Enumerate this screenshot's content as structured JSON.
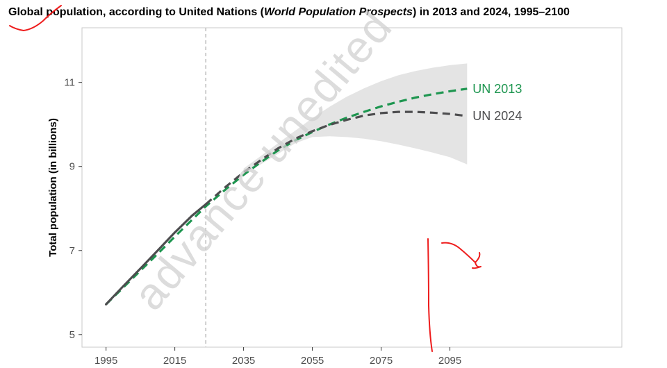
{
  "title": {
    "pre": "Global population, according to United Nations (",
    "italic": "World Population Prospects",
    "post": ") in 2013 and 2024, 1995–2100"
  },
  "watermark": "advance unedited",
  "colors": {
    "un2013": "#1e9650",
    "un2024": "#4d4d4f",
    "band": "#e4e4e4",
    "marker": "#bdbdbd",
    "annotation": "#ee1c1c",
    "frame": "#c8c8c8"
  },
  "chart_data": {
    "type": "line",
    "title": "Global population, according to United Nations (World Population Prospects) in 2013 and 2024, 1995–2100",
    "xlabel": "",
    "ylabel": "Total population (in billions)",
    "xlim": [
      1988,
      2145
    ],
    "ylim": [
      4.7,
      12.3
    ],
    "xticks": [
      1995,
      2015,
      2035,
      2055,
      2075,
      2095
    ],
    "yticks": [
      5,
      7,
      9,
      11
    ],
    "xtick_labels": [
      "1995",
      "2015",
      "2035",
      "2055",
      "2075",
      "2095"
    ],
    "ytick_labels": [
      "5",
      "7",
      "9",
      "11"
    ],
    "grid": false,
    "vertical_marker_x": 2024,
    "series": [
      {
        "name": "UN 2013",
        "style": "dashed",
        "x": [
          1995,
          2000,
          2005,
          2010,
          2015,
          2020,
          2024,
          2030,
          2035,
          2040,
          2045,
          2050,
          2055,
          2060,
          2065,
          2070,
          2075,
          2080,
          2085,
          2090,
          2095,
          2100
        ],
        "y": [
          5.72,
          6.12,
          6.52,
          6.92,
          7.33,
          7.73,
          8.05,
          8.47,
          8.8,
          9.1,
          9.38,
          9.62,
          9.82,
          10.0,
          10.16,
          10.3,
          10.43,
          10.54,
          10.64,
          10.72,
          10.79,
          10.85
        ]
      },
      {
        "name": "UN 2024",
        "style": "solid-then-dashed",
        "split_x": 2024,
        "x": [
          1995,
          2000,
          2005,
          2010,
          2015,
          2020,
          2024,
          2030,
          2035,
          2040,
          2045,
          2050,
          2055,
          2060,
          2065,
          2070,
          2075,
          2080,
          2085,
          2090,
          2095,
          2100
        ],
        "y": [
          5.72,
          6.15,
          6.57,
          7.0,
          7.43,
          7.83,
          8.1,
          8.53,
          8.86,
          9.15,
          9.43,
          9.66,
          9.84,
          9.99,
          10.11,
          10.21,
          10.27,
          10.3,
          10.3,
          10.28,
          10.25,
          10.2
        ]
      }
    ],
    "uncertainty_band": {
      "x": [
        2035,
        2040,
        2045,
        2050,
        2055,
        2060,
        2065,
        2070,
        2075,
        2080,
        2085,
        2090,
        2095,
        2100
      ],
      "lower": [
        8.85,
        9.05,
        9.3,
        9.55,
        9.7,
        9.72,
        9.7,
        9.66,
        9.6,
        9.52,
        9.43,
        9.33,
        9.22,
        9.05
      ],
      "upper": [
        8.95,
        9.25,
        9.55,
        9.85,
        10.15,
        10.42,
        10.66,
        10.86,
        11.03,
        11.17,
        11.27,
        11.35,
        11.41,
        11.45
      ]
    }
  }
}
